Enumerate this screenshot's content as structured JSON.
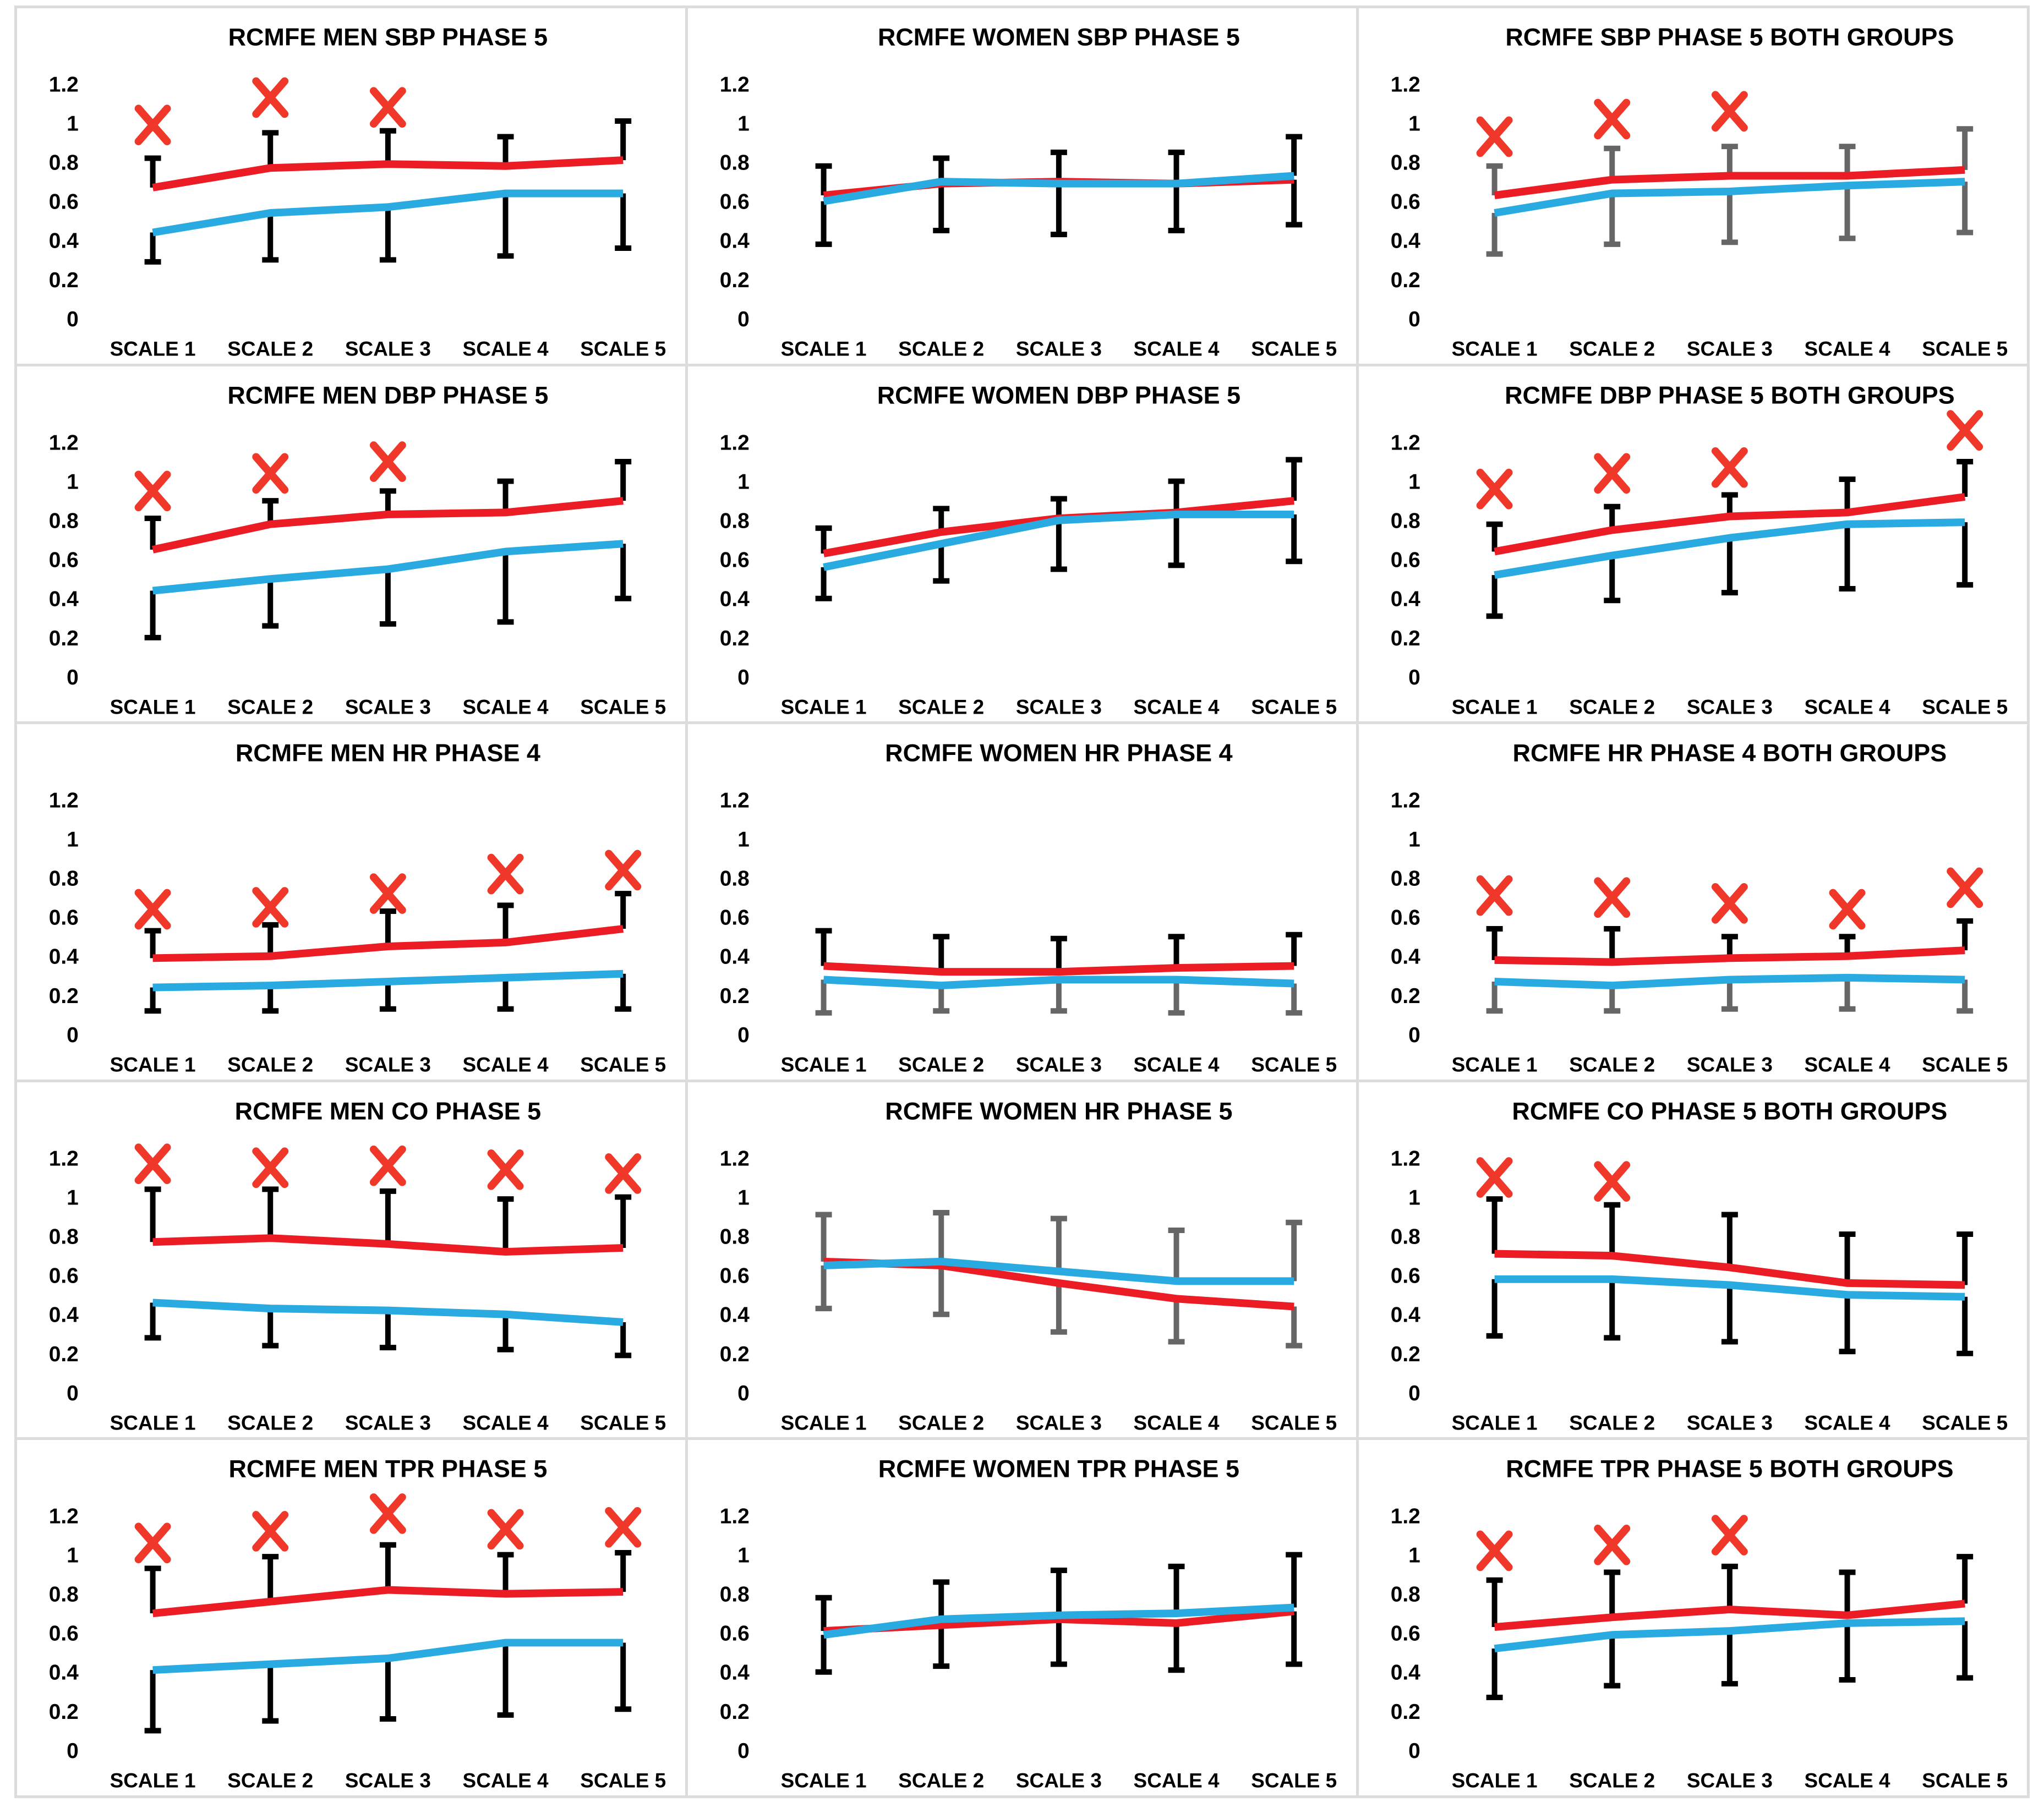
{
  "page": {
    "background": "#FFFFFF",
    "grid_line_color": "#DCDCDC"
  },
  "colors": {
    "red_line": "#EC1C24",
    "blue_line": "#29ABE2",
    "black_bar": "#000000",
    "gray_bar": "#666666",
    "marker": "#EF3829",
    "text": "#000000"
  },
  "axis": {
    "y_tick_labels": [
      "1.2",
      "1",
      "0.8",
      "0.6",
      "0.4",
      "0.2",
      "0"
    ],
    "y_tick_values": [
      1.2,
      1.0,
      0.8,
      0.6,
      0.4,
      0.2,
      0
    ],
    "x_categories": [
      "SCALE 1",
      "SCALE 2",
      "SCALE 3",
      "SCALE 4",
      "SCALE 5"
    ],
    "y_min": 0,
    "y_max": 1.3,
    "grid": "off",
    "legend": "none"
  },
  "chart_data": [
    {
      "type": "line",
      "title": "RCMFE MEN SBP PHASE 5",
      "categories": [
        "SCALE 1",
        "SCALE 2",
        "SCALE 3",
        "SCALE 4",
        "SCALE 5"
      ],
      "series": [
        {
          "name": "red",
          "values": [
            0.67,
            0.77,
            0.79,
            0.78,
            0.81
          ]
        },
        {
          "name": "blue",
          "values": [
            0.44,
            0.54,
            0.57,
            0.64,
            0.64
          ]
        }
      ],
      "error_top": [
        0.82,
        0.95,
        0.96,
        0.93,
        1.01
      ],
      "error_bottom": [
        0.29,
        0.3,
        0.3,
        0.32,
        0.36
      ],
      "upper_bar_color": "black",
      "lower_bar_color": "black",
      "significance_markers": [
        {
          "scale": 1,
          "value": 0.99
        },
        {
          "scale": 2,
          "value": 1.13
        },
        {
          "scale": 3,
          "value": 1.08
        }
      ]
    },
    {
      "type": "line",
      "title": "RCMFE WOMEN SBP PHASE 5",
      "categories": [
        "SCALE 1",
        "SCALE 2",
        "SCALE 3",
        "SCALE 4",
        "SCALE 5"
      ],
      "series": [
        {
          "name": "red",
          "values": [
            0.63,
            0.69,
            0.7,
            0.69,
            0.71
          ]
        },
        {
          "name": "blue",
          "values": [
            0.6,
            0.7,
            0.69,
            0.69,
            0.73
          ]
        }
      ],
      "error_top": [
        0.78,
        0.82,
        0.85,
        0.85,
        0.93
      ],
      "error_bottom": [
        0.38,
        0.45,
        0.43,
        0.45,
        0.48
      ],
      "upper_bar_color": "black",
      "lower_bar_color": "black",
      "significance_markers": []
    },
    {
      "type": "line",
      "title": "RCMFE SBP PHASE 5 BOTH GROUPS",
      "categories": [
        "SCALE 1",
        "SCALE 2",
        "SCALE 3",
        "SCALE 4",
        "SCALE 5"
      ],
      "series": [
        {
          "name": "red",
          "values": [
            0.63,
            0.71,
            0.73,
            0.73,
            0.76
          ]
        },
        {
          "name": "blue",
          "values": [
            0.54,
            0.64,
            0.65,
            0.68,
            0.7
          ]
        }
      ],
      "error_top": [
        0.78,
        0.87,
        0.88,
        0.88,
        0.97
      ],
      "error_bottom": [
        0.33,
        0.38,
        0.39,
        0.41,
        0.44
      ],
      "upper_bar_color": "gray",
      "lower_bar_color": "gray",
      "significance_markers": [
        {
          "scale": 1,
          "value": 0.93
        },
        {
          "scale": 2,
          "value": 1.02
        },
        {
          "scale": 3,
          "value": 1.06
        }
      ]
    },
    {
      "type": "line",
      "title": "RCMFE MEN DBP PHASE 5",
      "categories": [
        "SCALE 1",
        "SCALE 2",
        "SCALE 3",
        "SCALE 4",
        "SCALE 5"
      ],
      "series": [
        {
          "name": "red",
          "values": [
            0.65,
            0.78,
            0.83,
            0.84,
            0.9
          ]
        },
        {
          "name": "blue",
          "values": [
            0.44,
            0.5,
            0.55,
            0.64,
            0.68
          ]
        }
      ],
      "error_top": [
        0.81,
        0.9,
        0.95,
        1.0,
        1.1
      ],
      "error_bottom": [
        0.2,
        0.26,
        0.27,
        0.28,
        0.4
      ],
      "upper_bar_color": "black",
      "lower_bar_color": "black",
      "significance_markers": [
        {
          "scale": 1,
          "value": 0.95
        },
        {
          "scale": 2,
          "value": 1.04
        },
        {
          "scale": 3,
          "value": 1.1
        }
      ]
    },
    {
      "type": "line",
      "title": "RCMFE WOMEN DBP PHASE 5",
      "categories": [
        "SCALE 1",
        "SCALE 2",
        "SCALE 3",
        "SCALE 4",
        "SCALE 5"
      ],
      "series": [
        {
          "name": "red",
          "values": [
            0.63,
            0.74,
            0.81,
            0.84,
            0.9
          ]
        },
        {
          "name": "blue",
          "values": [
            0.56,
            0.68,
            0.8,
            0.83,
            0.83
          ]
        }
      ],
      "error_top": [
        0.76,
        0.86,
        0.91,
        1.0,
        1.11
      ],
      "error_bottom": [
        0.4,
        0.49,
        0.55,
        0.57,
        0.59
      ],
      "upper_bar_color": "black",
      "lower_bar_color": "black",
      "significance_markers": []
    },
    {
      "type": "line",
      "title": "RCMFE DBP PHASE 5 BOTH GROUPS",
      "categories": [
        "SCALE 1",
        "SCALE 2",
        "SCALE 3",
        "SCALE 4",
        "SCALE 5"
      ],
      "series": [
        {
          "name": "red",
          "values": [
            0.64,
            0.75,
            0.82,
            0.84,
            0.92
          ]
        },
        {
          "name": "blue",
          "values": [
            0.52,
            0.62,
            0.71,
            0.78,
            0.79
          ]
        }
      ],
      "error_top": [
        0.78,
        0.87,
        0.93,
        1.01,
        1.1
      ],
      "error_bottom": [
        0.31,
        0.39,
        0.43,
        0.45,
        0.47
      ],
      "upper_bar_color": "black",
      "lower_bar_color": "black",
      "significance_markers": [
        {
          "scale": 1,
          "value": 0.96
        },
        {
          "scale": 2,
          "value": 1.04
        },
        {
          "scale": 3,
          "value": 1.07
        },
        {
          "scale": 5,
          "value": 1.26
        }
      ]
    },
    {
      "type": "line",
      "title": "RCMFE MEN HR PHASE 4",
      "categories": [
        "SCALE 1",
        "SCALE 2",
        "SCALE 3",
        "SCALE 4",
        "SCALE 5"
      ],
      "series": [
        {
          "name": "red",
          "values": [
            0.39,
            0.4,
            0.45,
            0.47,
            0.54
          ]
        },
        {
          "name": "blue",
          "values": [
            0.24,
            0.25,
            0.27,
            0.29,
            0.31
          ]
        }
      ],
      "error_top": [
        0.53,
        0.56,
        0.63,
        0.66,
        0.72
      ],
      "error_bottom": [
        0.12,
        0.12,
        0.13,
        0.13,
        0.13
      ],
      "upper_bar_color": "black",
      "lower_bar_color": "black",
      "significance_markers": [
        {
          "scale": 1,
          "value": 0.64
        },
        {
          "scale": 2,
          "value": 0.65
        },
        {
          "scale": 3,
          "value": 0.72
        },
        {
          "scale": 4,
          "value": 0.82
        },
        {
          "scale": 5,
          "value": 0.84
        }
      ]
    },
    {
      "type": "line",
      "title": "RCMFE WOMEN HR PHASE 4",
      "categories": [
        "SCALE 1",
        "SCALE 2",
        "SCALE 3",
        "SCALE 4",
        "SCALE 5"
      ],
      "series": [
        {
          "name": "red",
          "values": [
            0.35,
            0.32,
            0.32,
            0.34,
            0.35
          ]
        },
        {
          "name": "blue",
          "values": [
            0.28,
            0.25,
            0.28,
            0.28,
            0.26
          ]
        }
      ],
      "error_top": [
        0.53,
        0.5,
        0.49,
        0.5,
        0.51
      ],
      "error_bottom": [
        0.11,
        0.12,
        0.12,
        0.11,
        0.11
      ],
      "upper_bar_color": "black",
      "lower_bar_color": "gray",
      "significance_markers": []
    },
    {
      "type": "line",
      "title": "RCMFE HR PHASE 4 BOTH GROUPS",
      "categories": [
        "SCALE 1",
        "SCALE 2",
        "SCALE 3",
        "SCALE 4",
        "SCALE 5"
      ],
      "series": [
        {
          "name": "red",
          "values": [
            0.38,
            0.37,
            0.39,
            0.4,
            0.43
          ]
        },
        {
          "name": "blue",
          "values": [
            0.27,
            0.25,
            0.28,
            0.29,
            0.28
          ]
        }
      ],
      "error_top": [
        0.54,
        0.54,
        0.5,
        0.5,
        0.58
      ],
      "error_bottom": [
        0.12,
        0.12,
        0.13,
        0.13,
        0.12
      ],
      "upper_bar_color": "black",
      "lower_bar_color": "gray",
      "significance_markers": [
        {
          "scale": 1,
          "value": 0.71
        },
        {
          "scale": 2,
          "value": 0.7
        },
        {
          "scale": 3,
          "value": 0.67
        },
        {
          "scale": 4,
          "value": 0.64
        },
        {
          "scale": 5,
          "value": 0.75
        }
      ]
    },
    {
      "type": "line",
      "title": "RCMFE MEN CO PHASE 5",
      "categories": [
        "SCALE 1",
        "SCALE 2",
        "SCALE 3",
        "SCALE 4",
        "SCALE 5"
      ],
      "series": [
        {
          "name": "red",
          "values": [
            0.77,
            0.79,
            0.76,
            0.72,
            0.74
          ]
        },
        {
          "name": "blue",
          "values": [
            0.46,
            0.43,
            0.42,
            0.4,
            0.36
          ]
        }
      ],
      "error_top": [
        1.04,
        1.04,
        1.03,
        0.99,
        1.0
      ],
      "error_bottom": [
        0.28,
        0.24,
        0.23,
        0.22,
        0.19
      ],
      "upper_bar_color": "black",
      "lower_bar_color": "black",
      "significance_markers": [
        {
          "scale": 1,
          "value": 1.17
        },
        {
          "scale": 2,
          "value": 1.15
        },
        {
          "scale": 3,
          "value": 1.16
        },
        {
          "scale": 4,
          "value": 1.14
        },
        {
          "scale": 5,
          "value": 1.12
        }
      ]
    },
    {
      "type": "line",
      "title": "RCMFE WOMEN HR PHASE 5",
      "categories": [
        "SCALE 1",
        "SCALE 2",
        "SCALE 3",
        "SCALE 4",
        "SCALE 5"
      ],
      "series": [
        {
          "name": "red",
          "values": [
            0.67,
            0.65,
            0.56,
            0.48,
            0.44
          ]
        },
        {
          "name": "blue",
          "values": [
            0.65,
            0.67,
            0.62,
            0.57,
            0.57
          ]
        }
      ],
      "error_top": [
        0.91,
        0.92,
        0.89,
        0.83,
        0.87
      ],
      "error_bottom": [
        0.43,
        0.4,
        0.31,
        0.26,
        0.24
      ],
      "upper_bar_color": "gray",
      "lower_bar_color": "gray",
      "significance_markers": []
    },
    {
      "type": "line",
      "title": "RCMFE CO PHASE 5 BOTH GROUPS",
      "categories": [
        "SCALE 1",
        "SCALE 2",
        "SCALE 3",
        "SCALE 4",
        "SCALE 5"
      ],
      "series": [
        {
          "name": "red",
          "values": [
            0.71,
            0.7,
            0.64,
            0.56,
            0.55
          ]
        },
        {
          "name": "blue",
          "values": [
            0.58,
            0.58,
            0.55,
            0.5,
            0.49
          ]
        }
      ],
      "error_top": [
        0.99,
        0.96,
        0.91,
        0.81,
        0.81
      ],
      "error_bottom": [
        0.29,
        0.28,
        0.26,
        0.21,
        0.2
      ],
      "upper_bar_color": "black",
      "lower_bar_color": "black",
      "significance_markers": [
        {
          "scale": 1,
          "value": 1.1
        },
        {
          "scale": 2,
          "value": 1.08
        }
      ]
    },
    {
      "type": "line",
      "title": "RCMFE MEN TPR PHASE 5",
      "categories": [
        "SCALE 1",
        "SCALE 2",
        "SCALE 3",
        "SCALE 4",
        "SCALE 5"
      ],
      "series": [
        {
          "name": "red",
          "values": [
            0.7,
            0.76,
            0.82,
            0.8,
            0.81
          ]
        },
        {
          "name": "blue",
          "values": [
            0.41,
            0.44,
            0.47,
            0.55,
            0.55
          ]
        }
      ],
      "error_top": [
        0.93,
        0.99,
        1.05,
        1.0,
        1.01
      ],
      "error_bottom": [
        0.1,
        0.15,
        0.16,
        0.18,
        0.21
      ],
      "upper_bar_color": "black",
      "lower_bar_color": "black",
      "significance_markers": [
        {
          "scale": 1,
          "value": 1.06
        },
        {
          "scale": 2,
          "value": 1.12
        },
        {
          "scale": 3,
          "value": 1.21
        },
        {
          "scale": 4,
          "value": 1.13
        },
        {
          "scale": 5,
          "value": 1.14
        }
      ]
    },
    {
      "type": "line",
      "title": "RCMFE WOMEN TPR PHASE 5",
      "categories": [
        "SCALE 1",
        "SCALE 2",
        "SCALE 3",
        "SCALE 4",
        "SCALE 5"
      ],
      "series": [
        {
          "name": "red",
          "values": [
            0.61,
            0.64,
            0.67,
            0.65,
            0.71
          ]
        },
        {
          "name": "blue",
          "values": [
            0.59,
            0.67,
            0.69,
            0.7,
            0.73
          ]
        }
      ],
      "error_top": [
        0.78,
        0.86,
        0.92,
        0.94,
        1.0
      ],
      "error_bottom": [
        0.4,
        0.43,
        0.44,
        0.41,
        0.44
      ],
      "upper_bar_color": "black",
      "lower_bar_color": "black",
      "significance_markers": []
    },
    {
      "type": "line",
      "title": "RCMFE TPR PHASE 5 BOTH GROUPS",
      "categories": [
        "SCALE 1",
        "SCALE 2",
        "SCALE 3",
        "SCALE 4",
        "SCALE 5"
      ],
      "series": [
        {
          "name": "red",
          "values": [
            0.63,
            0.68,
            0.72,
            0.69,
            0.75
          ]
        },
        {
          "name": "blue",
          "values": [
            0.52,
            0.59,
            0.61,
            0.65,
            0.66
          ]
        }
      ],
      "error_top": [
        0.87,
        0.91,
        0.94,
        0.91,
        0.99
      ],
      "error_bottom": [
        0.27,
        0.33,
        0.34,
        0.36,
        0.37
      ],
      "upper_bar_color": "black",
      "lower_bar_color": "black",
      "significance_markers": [
        {
          "scale": 1,
          "value": 1.02
        },
        {
          "scale": 2,
          "value": 1.05
        },
        {
          "scale": 3,
          "value": 1.1
        }
      ]
    }
  ]
}
